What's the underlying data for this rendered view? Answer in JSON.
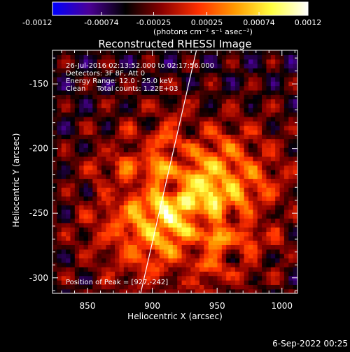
{
  "colorbar": {
    "tick_labels": [
      "-0.0012",
      "-0.00074",
      "-0.00025",
      "0.00025",
      "0.00074",
      "0.0012"
    ],
    "range": [
      -0.0012,
      0.0012
    ],
    "units": "(photons cm⁻² s⁻¹ asec⁻²)",
    "colormap": [
      "#0000ff",
      "#4b0096",
      "#000000",
      "#8b0000",
      "#ff3000",
      "#ff9a00",
      "#ffff40",
      "#ffffff"
    ]
  },
  "chart_data": {
    "type": "heatmap",
    "title": "Reconstructed RHESSI Image",
    "xlabel": "Heliocentric X (arcsec)",
    "ylabel": "Heliocentric Y (arcsec)",
    "xlim": [
      823,
      1012
    ],
    "ylim": [
      -312,
      -124
    ],
    "xticks": [
      850,
      900,
      950,
      1000
    ],
    "yticks": [
      -150,
      -200,
      -250,
      -300
    ],
    "annotations": [
      "26-Jul-2016 02:13:52.000 to 02:17:56.000",
      "Detectors: 3F 8F, Att 0",
      "Energy Range: 12.0 - 25.0 keV",
      "Clean     Total counts: 1.22E+03"
    ],
    "peak_label": "Position of Peak = [927,-242]",
    "peak": [
      927,
      -242
    ],
    "limb_line": [
      [
        891,
        -312
      ],
      [
        934,
        -124
      ]
    ]
  },
  "footer": {
    "date": "6-Sep-2022 00:25"
  }
}
